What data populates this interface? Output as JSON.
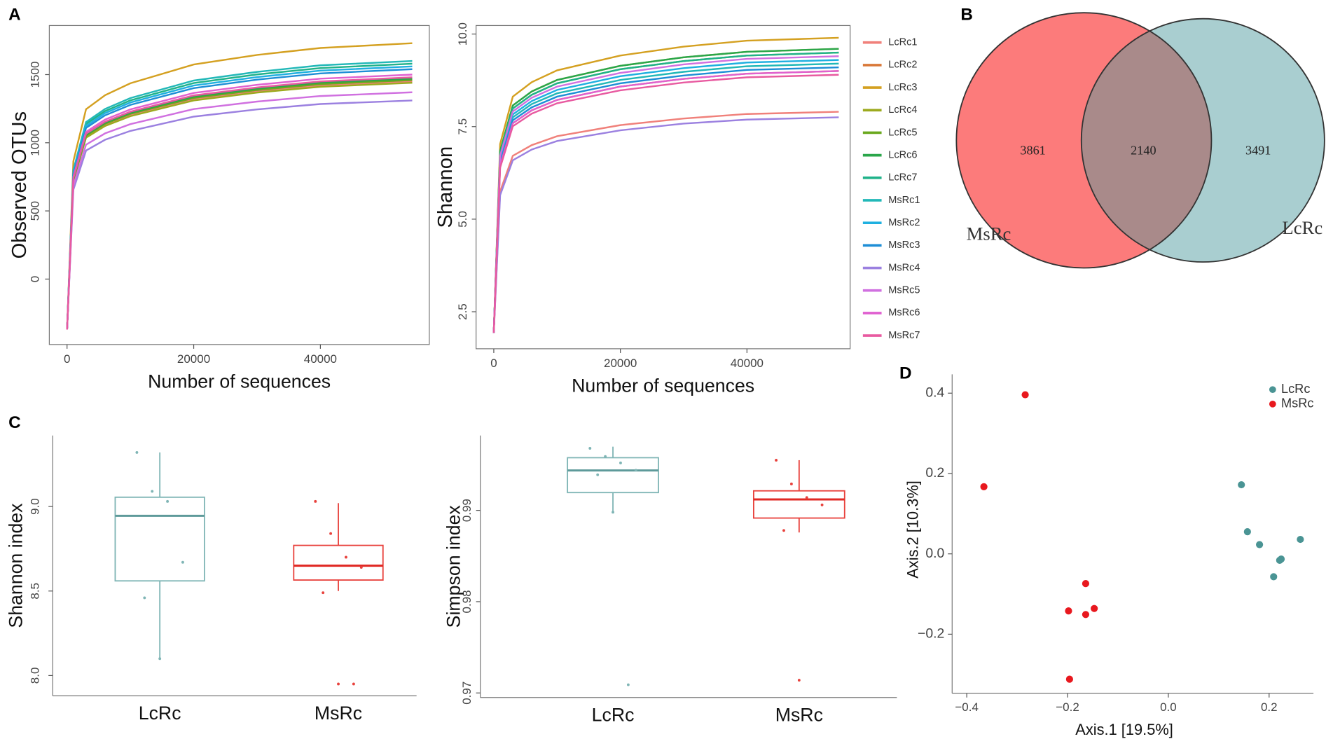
{
  "panels": [
    "A",
    "B",
    "C",
    "D"
  ],
  "chart_data": [
    {
      "type": "line",
      "xlabel": "Number of sequences",
      "ylabel": "Observed OTUs",
      "x": [
        0,
        1000,
        3000,
        6000,
        10000,
        20000,
        30000,
        40000,
        54500
      ],
      "xlim": [
        -2800,
        57200
      ],
      "xticks": [
        0,
        20000,
        40000
      ],
      "ylim": [
        -480,
        1860
      ],
      "yticks": [
        0,
        500,
        1000,
        1500
      ],
      "series": [
        {
          "color": "#f0807a",
          "values": [
            -370,
            725,
            1044,
            1131,
            1204,
            1320,
            1378,
            1421,
            1450
          ]
        },
        {
          "color": "#d9793a",
          "values": [
            -370,
            730,
            1051,
            1139,
            1212,
            1329,
            1387,
            1431,
            1460
          ]
        },
        {
          "color": "#d4a020",
          "values": [
            -370,
            865,
            1246,
            1349,
            1436,
            1574,
            1644,
            1695,
            1730
          ]
        },
        {
          "color": "#9caa1e",
          "values": [
            -370,
            720,
            1037,
            1123,
            1195,
            1310,
            1368,
            1411,
            1440
          ]
        },
        {
          "color": "#6aa81e",
          "values": [
            -370,
            730,
            1051,
            1139,
            1212,
            1329,
            1387,
            1431,
            1460
          ]
        },
        {
          "color": "#2aa64a",
          "values": [
            -370,
            735,
            1058,
            1147,
            1220,
            1338,
            1397,
            1441,
            1470
          ]
        },
        {
          "color": "#20b28a",
          "values": [
            -370,
            790,
            1138,
            1232,
            1311,
            1438,
            1501,
            1548,
            1580
          ]
        },
        {
          "color": "#22b8b8",
          "values": [
            -370,
            800,
            1152,
            1248,
            1328,
            1456,
            1520,
            1568,
            1600
          ]
        },
        {
          "color": "#1fb0e0",
          "values": [
            -370,
            780,
            1123,
            1217,
            1295,
            1420,
            1482,
            1529,
            1560
          ]
        },
        {
          "color": "#1e8ed6",
          "values": [
            -370,
            770,
            1109,
            1201,
            1278,
            1401,
            1463,
            1509,
            1540
          ]
        },
        {
          "color": "#9b80e0",
          "values": [
            -370,
            655,
            943,
            1022,
            1087,
            1192,
            1245,
            1284,
            1310
          ]
        },
        {
          "color": "#d070e0",
          "values": [
            -370,
            685,
            986,
            1069,
            1137,
            1247,
            1302,
            1343,
            1370
          ]
        },
        {
          "color": "#e060d0",
          "values": [
            -370,
            750,
            1080,
            1170,
            1245,
            1365,
            1425,
            1470,
            1500
          ]
        },
        {
          "color": "#e85aa0",
          "values": [
            -370,
            740,
            1066,
            1154,
            1228,
            1347,
            1406,
            1450,
            1480
          ]
        }
      ]
    },
    {
      "type": "line",
      "xlabel": "Number of sequences",
      "ylabel": "Shannon",
      "x": [
        0,
        1000,
        3000,
        6000,
        10000,
        20000,
        30000,
        40000,
        54500
      ],
      "xlim": [
        -2800,
        56300
      ],
      "xticks": [
        0,
        20000,
        40000
      ],
      "ylim": [
        1.5,
        10.23
      ],
      "yticks": [
        2.5,
        {
          "value": 5,
          "label": "5.0"
        },
        7.5,
        {
          "value": 10,
          "label": "10.0"
        }
      ],
      "series": [
        {
          "name": "LcRc1",
          "color": "#f0807a",
          "values": [
            1.93,
            5.75,
            6.71,
            7.0,
            7.24,
            7.54,
            7.72,
            7.84,
            7.9
          ]
        },
        {
          "name": "LcRc2",
          "color": "#d9793a",
          "values": [
            1.93,
            6.45,
            7.59,
            7.94,
            8.22,
            8.58,
            8.79,
            8.93,
            9.0
          ]
        },
        {
          "name": "LcRc3",
          "color": "#d4a020",
          "values": [
            1.93,
            7.03,
            8.31,
            8.7,
            9.02,
            9.42,
            9.66,
            9.82,
            9.9
          ]
        },
        {
          "name": "LcRc4",
          "color": "#9caa1e",
          "values": [
            1.93,
            6.84,
            8.07,
            8.45,
            8.76,
            9.14,
            9.37,
            9.52,
            9.6
          ]
        },
        {
          "name": "LcRc5",
          "color": "#6aa81e",
          "values": [
            1.93,
            6.77,
            7.99,
            8.36,
            8.67,
            9.05,
            9.27,
            9.42,
            9.5
          ]
        },
        {
          "name": "LcRc6",
          "color": "#2aa64a",
          "values": [
            1.93,
            6.84,
            8.07,
            8.45,
            8.76,
            9.14,
            9.37,
            9.52,
            9.6
          ]
        },
        {
          "name": "LcRc7",
          "color": "#20b28a",
          "values": [
            1.93,
            6.77,
            7.99,
            8.36,
            8.67,
            9.05,
            9.27,
            9.42,
            9.5
          ]
        },
        {
          "name": "MsRc1",
          "color": "#22b8b8",
          "values": [
            1.93,
            6.58,
            7.75,
            8.11,
            8.4,
            8.76,
            8.98,
            9.13,
            9.2
          ]
        },
        {
          "name": "MsRc2",
          "color": "#1fb0e0",
          "values": [
            1.93,
            6.65,
            7.83,
            8.19,
            8.49,
            8.86,
            9.08,
            9.23,
            9.3
          ]
        },
        {
          "name": "MsRc3",
          "color": "#1e8ed6",
          "values": [
            1.93,
            6.52,
            7.67,
            8.02,
            8.31,
            8.67,
            8.88,
            9.03,
            9.1
          ]
        },
        {
          "name": "MsRc4",
          "color": "#9b80e0",
          "values": [
            1.93,
            5.65,
            6.59,
            6.88,
            7.11,
            7.4,
            7.58,
            7.69,
            7.75
          ]
        },
        {
          "name": "MsRc5",
          "color": "#d070e0",
          "values": [
            1.93,
            6.71,
            7.91,
            8.28,
            8.58,
            8.95,
            9.18,
            9.33,
            9.4
          ]
        },
        {
          "name": "MsRc6",
          "color": "#e060d0",
          "values": [
            1.93,
            6.45,
            7.59,
            7.94,
            8.22,
            8.58,
            8.79,
            8.93,
            9.0
          ]
        },
        {
          "name": "MsRc7",
          "color": "#e85aa0",
          "values": [
            1.93,
            6.39,
            7.51,
            7.85,
            8.13,
            8.48,
            8.69,
            8.83,
            8.9
          ]
        }
      ]
    },
    {
      "type": "venn",
      "sets": [
        "MsRc",
        "LcRc"
      ],
      "values": [
        3861,
        2140,
        3491
      ],
      "colors": [
        "#fc7b7b",
        "#a98a8a",
        "#a9ced0"
      ]
    },
    {
      "type": "box",
      "ylabel": "Shannon index",
      "categories": [
        "LcRc",
        "MsRc"
      ],
      "ylim": [
        7.88,
        9.42
      ],
      "yticks": [
        {
          "value": 8,
          "label": "8.0"
        },
        8.5,
        {
          "value": 9,
          "label": "9.0"
        }
      ],
      "colors": [
        "#7fb5b5",
        "#e8413c"
      ],
      "median_colors": [
        "#5e9a9a",
        "#e02a25"
      ],
      "boxes": [
        {
          "whisker_low": 8.095,
          "q1": 8.56,
          "median": 8.945,
          "q3": 9.055,
          "whisker_high": 9.32
        },
        {
          "whisker_low": 8.5,
          "q1": 8.565,
          "median": 8.65,
          "q3": 8.77,
          "whisker_high": 9.02
        }
      ],
      "points": [
        [
          9.32,
          9.09,
          9.03,
          8.67,
          8.46,
          8.1
        ],
        [
          9.03,
          8.84,
          8.7,
          8.64,
          8.49,
          7.95,
          7.95
        ]
      ]
    },
    {
      "type": "box",
      "ylabel": "Simpson index",
      "categories": [
        "LcRc",
        "MsRc"
      ],
      "ylim": [
        0.9695,
        0.9982
      ],
      "yticks": [
        0.97,
        0.98,
        0.99
      ],
      "colors": [
        "#7fb5b5",
        "#e8413c"
      ],
      "median_colors": [
        "#5e9a9a",
        "#e02a25"
      ],
      "boxes": [
        {
          "whisker_low": 0.9899,
          "q1": 0.99195,
          "median": 0.99437,
          "q3": 0.99577,
          "whisker_high": 0.99698
        },
        {
          "whisker_low": 0.98758,
          "q1": 0.98916,
          "median": 0.9912,
          "q3": 0.99214,
          "whisker_high": 0.9955
        }
      ],
      "points": [
        [
          0.9968,
          0.9959,
          0.9952,
          0.9944,
          0.9939,
          0.9898,
          0.9709
        ],
        [
          0.9955,
          0.9929,
          0.9914,
          0.9906,
          0.9878,
          0.9714
        ]
      ]
    },
    {
      "type": "scatter",
      "xlabel": "Axis.1   [19.5%]",
      "ylabel": "Axis.2   [10.3%]",
      "xlim": [
        -0.429,
        0.288
      ],
      "xticks": [
        {
          "value": -0.4,
          "label": "−0.4"
        },
        {
          "value": -0.2,
          "label": "−0.2"
        },
        {
          "value": 0,
          "label": "0.0"
        },
        0.2
      ],
      "ylim": [
        -0.347,
        0.447
      ],
      "yticks": [
        {
          "value": -0.2,
          "label": "−0.2"
        },
        {
          "value": 0,
          "label": "0.0"
        },
        0.2,
        0.4
      ],
      "legend": "top-right",
      "series": [
        {
          "name": "LcRc",
          "color": "#4a9494",
          "x": [
            0.145,
            0.157,
            0.181,
            0.224,
            0.221,
            0.209,
            0.262
          ],
          "values": [
            0.172,
            0.055,
            0.023,
            -0.013,
            -0.016,
            -0.057,
            0.036
          ]
        },
        {
          "name": "MsRc",
          "color": "#e8181e",
          "x": [
            -0.284,
            -0.366,
            -0.164,
            -0.198,
            -0.147,
            -0.164,
            -0.196
          ],
          "values": [
            0.396,
            0.167,
            -0.074,
            -0.142,
            -0.136,
            -0.151,
            -0.312
          ]
        }
      ]
    }
  ]
}
